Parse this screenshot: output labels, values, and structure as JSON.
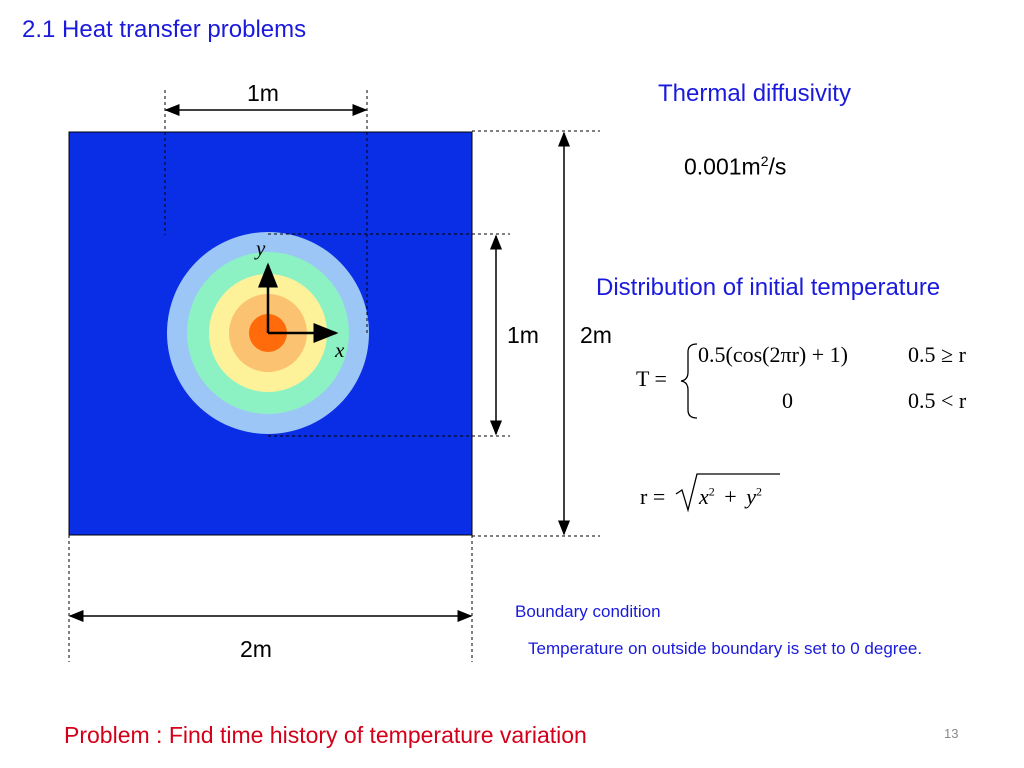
{
  "slide": {
    "title": "2.1 Heat transfer problems",
    "page_number": "13",
    "problem": "Problem : Find time history of temperature variation"
  },
  "diagram": {
    "dim_top": "1m",
    "dim_bottom": "2m",
    "dim_inner_right": "1m",
    "dim_outer_right": "2m",
    "axis_x": "x",
    "axis_y": "y",
    "colors": {
      "domain": "#0a2ee6",
      "ring1": "#9cc6f5",
      "ring2": "#8cf2c4",
      "ring3": "#fdf29a",
      "ring4": "#fbc272",
      "core": "#ff6a0a"
    }
  },
  "thermal": {
    "heading": "Thermal diffusivity",
    "value_prefix": "0.001m",
    "value_sup": "2",
    "value_suffix": "/s"
  },
  "initial_temp": {
    "heading": "Distribution of initial temperature",
    "T_label": "T =",
    "case1_expr": "0.5(cos(2πr) + 1)",
    "case1_cond": "0.5 ≥ r",
    "case2_expr": "0",
    "case2_cond": "0.5 < r",
    "r_lhs": "r =",
    "r_x": "x",
    "r_y": "y",
    "r_exp": "2",
    "r_plus": "+"
  },
  "boundary": {
    "heading": "Boundary condition",
    "text": "Temperature on outside boundary is set to 0 degree."
  }
}
